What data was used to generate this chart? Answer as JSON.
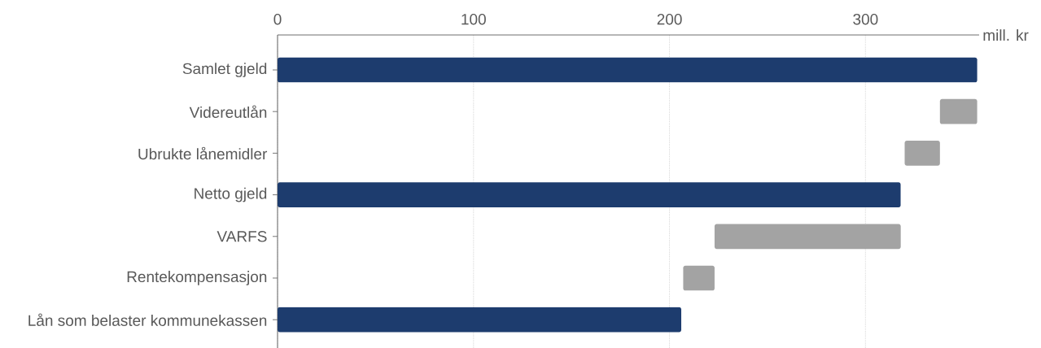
{
  "chart_data": {
    "type": "bar",
    "orientation": "horizontal",
    "xlabel": "mill. kr",
    "categories": [
      "Samlet gjeld",
      "Videreutlån",
      "Ubrukte lånemidler",
      "Netto gjeld",
      "VARFS",
      "Rentekompensasjon",
      "Lån som belaster kommunekassen"
    ],
    "values": [
      357,
      19,
      18,
      318,
      95,
      16,
      206
    ],
    "base": [
      0,
      338,
      320,
      0,
      223,
      207,
      0
    ],
    "colors": [
      "#1d3c6e",
      "#a3a3a3",
      "#a3a3a3",
      "#1d3c6e",
      "#a3a3a3",
      "#a3a3a3",
      "#1d3c6e"
    ],
    "xlim": [
      0,
      358
    ],
    "xticks": [
      0,
      100,
      200,
      300
    ],
    "grid": "x"
  }
}
